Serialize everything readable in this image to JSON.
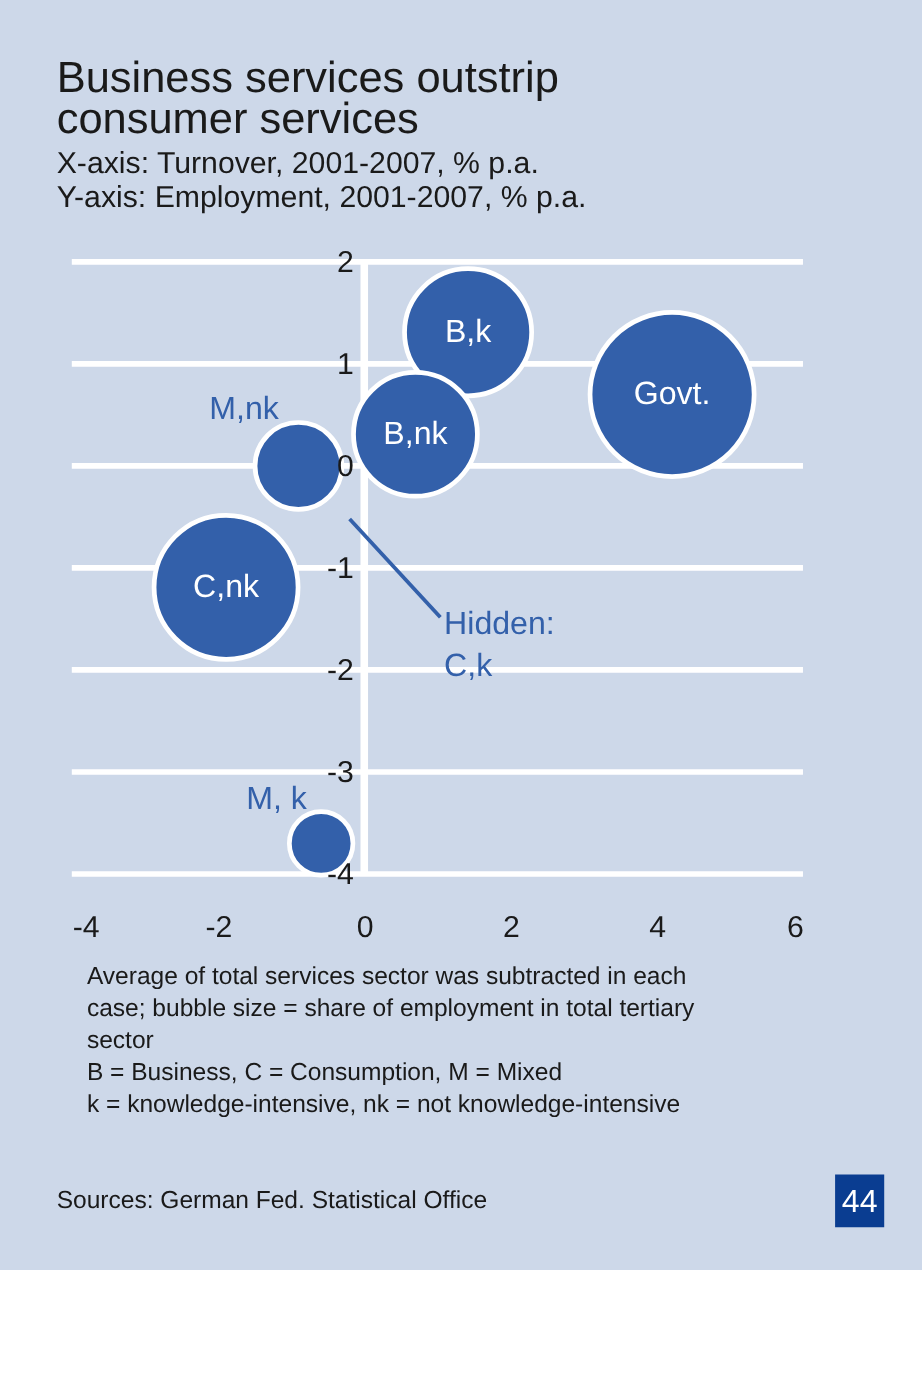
{
  "chart_data": {
    "type": "bubble",
    "title": "Business services outstrip consumer services",
    "subtitle": [
      "X-axis: Turnover, 2001-2007, % p.a.",
      "Y-axis: Employment, 2001-2007, % p.a."
    ],
    "series": [
      {
        "name": "B,k",
        "color": "#3360aa",
        "x": [
          1.42
        ],
        "values": [
          1.31
        ],
        "sizes": [
          0.6
        ]
      },
      {
        "name": "Govt.",
        "color": "#3360aa",
        "x": [
          4.21
        ],
        "values": [
          0.7
        ],
        "sizes": [
          1
        ]
      },
      {
        "name": "B,nk",
        "color": "#3360aa",
        "x": [
          0.7
        ],
        "values": [
          0.31
        ],
        "sizes": [
          0.57
        ]
      },
      {
        "name": "M,nk",
        "color": "#3360aa",
        "x": [
          -0.9
        ],
        "values": [
          0.0
        ],
        "sizes": [
          0.28
        ]
      },
      {
        "name": "C,nk",
        "color": "#3360aa",
        "x": [
          -1.89
        ],
        "values": [
          -1.19
        ],
        "sizes": [
          0.77
        ]
      },
      {
        "name": "M, k",
        "color": "#3360aa",
        "x": [
          -0.59
        ],
        "values": [
          -3.7
        ],
        "sizes": [
          0.15
        ]
      }
    ],
    "xlim": [
      -4,
      6
    ],
    "xticks": [
      -4,
      -2,
      0,
      2,
      4,
      6
    ],
    "ylim": [
      -4,
      2
    ],
    "yticks": [
      -4,
      -3,
      -2,
      -1,
      0,
      1,
      2
    ],
    "grid": "y",
    "legend": false,
    "annotations": [
      "Hidden: C,k",
      "Average of total services sector was subtracted in each case; bubble size = share of employment in total tertiary sector",
      "B = Business, C = Consumption, M = Mixed",
      "k = knowledge-intensive, nk = not knowledge-intensive",
      "Sources: German Fed. Statistical Office",
      "44"
    ]
  }
}
